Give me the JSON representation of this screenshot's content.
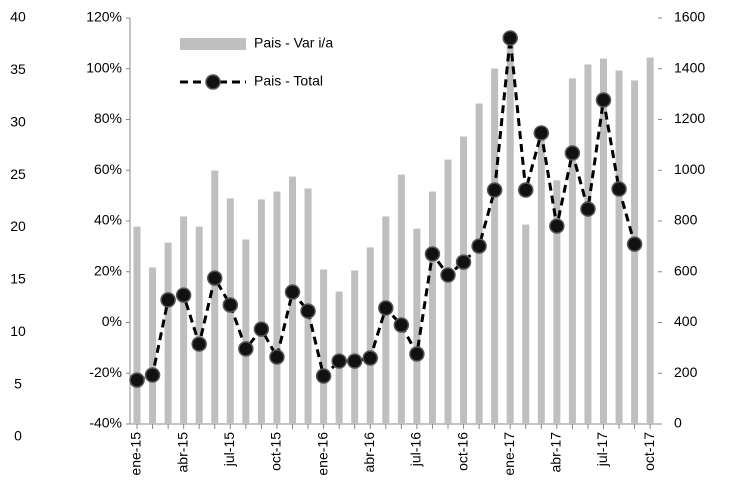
{
  "chart_data": {
    "type": "bar-line",
    "categories": [
      "ene-15",
      null,
      null,
      "abr-15",
      null,
      null,
      "jul-15",
      null,
      null,
      "oct-15",
      null,
      null,
      "ene-16",
      null,
      null,
      "abr-16",
      null,
      null,
      "jul-16",
      null,
      null,
      "oct-16",
      null,
      null,
      "ene-17",
      null,
      null,
      "abr-17",
      null,
      null,
      "jul-17",
      null,
      null,
      "oct-17"
    ],
    "series": [
      {
        "name": "Pais - Var i/a",
        "type": "bar",
        "axis": "y",
        "color": "#bfbfbf",
        "values": [
          37.8,
          21.7,
          31.5,
          41.8,
          37.8,
          59.9,
          48.9,
          32.7,
          48.5,
          51.6,
          57.5,
          52.8,
          20.9,
          12.2,
          20.5,
          29.6,
          41.8,
          58.3,
          37.0,
          51.6,
          64.2,
          73.3,
          86.3,
          100.1,
          110,
          38.6,
          75.7,
          56.0,
          96.2,
          101.7,
          104.0,
          99.3,
          95.4,
          104.4
        ]
      },
      {
        "name": "Pais - Total",
        "type": "line",
        "axis": "y2",
        "color": "#000000",
        "values": [
          173,
          193,
          489,
          508,
          315,
          575,
          469,
          296,
          374,
          264,
          520,
          445,
          189,
          248,
          248,
          260,
          457,
          390,
          276,
          670,
          587,
          638,
          701,
          922,
          1521,
          922,
          1147,
          780,
          1068,
          847,
          1277,
          926,
          709,
          null
        ]
      }
    ],
    "ylim": [
      -40,
      120
    ],
    "yticks": [
      {
        "value": -40,
        "label": "-40%"
      },
      {
        "value": -20,
        "label": "-20%"
      },
      {
        "value": 0,
        "label": "0%"
      },
      {
        "value": 20,
        "label": "20%"
      },
      {
        "value": 40,
        "label": "40%"
      },
      {
        "value": 60,
        "label": "60%"
      },
      {
        "value": 80,
        "label": "80%"
      },
      {
        "value": 100,
        "label": "100%"
      },
      {
        "value": 120,
        "label": "120%"
      }
    ],
    "y2lim": [
      0,
      1600
    ],
    "y2ticks": [
      0,
      200,
      400,
      600,
      800,
      1000,
      1200,
      1400,
      1600
    ],
    "y3lim": [
      0,
      40
    ],
    "y3ticks": [
      0,
      5,
      10,
      15,
      20,
      25,
      30,
      35,
      40
    ],
    "grid": false
  }
}
